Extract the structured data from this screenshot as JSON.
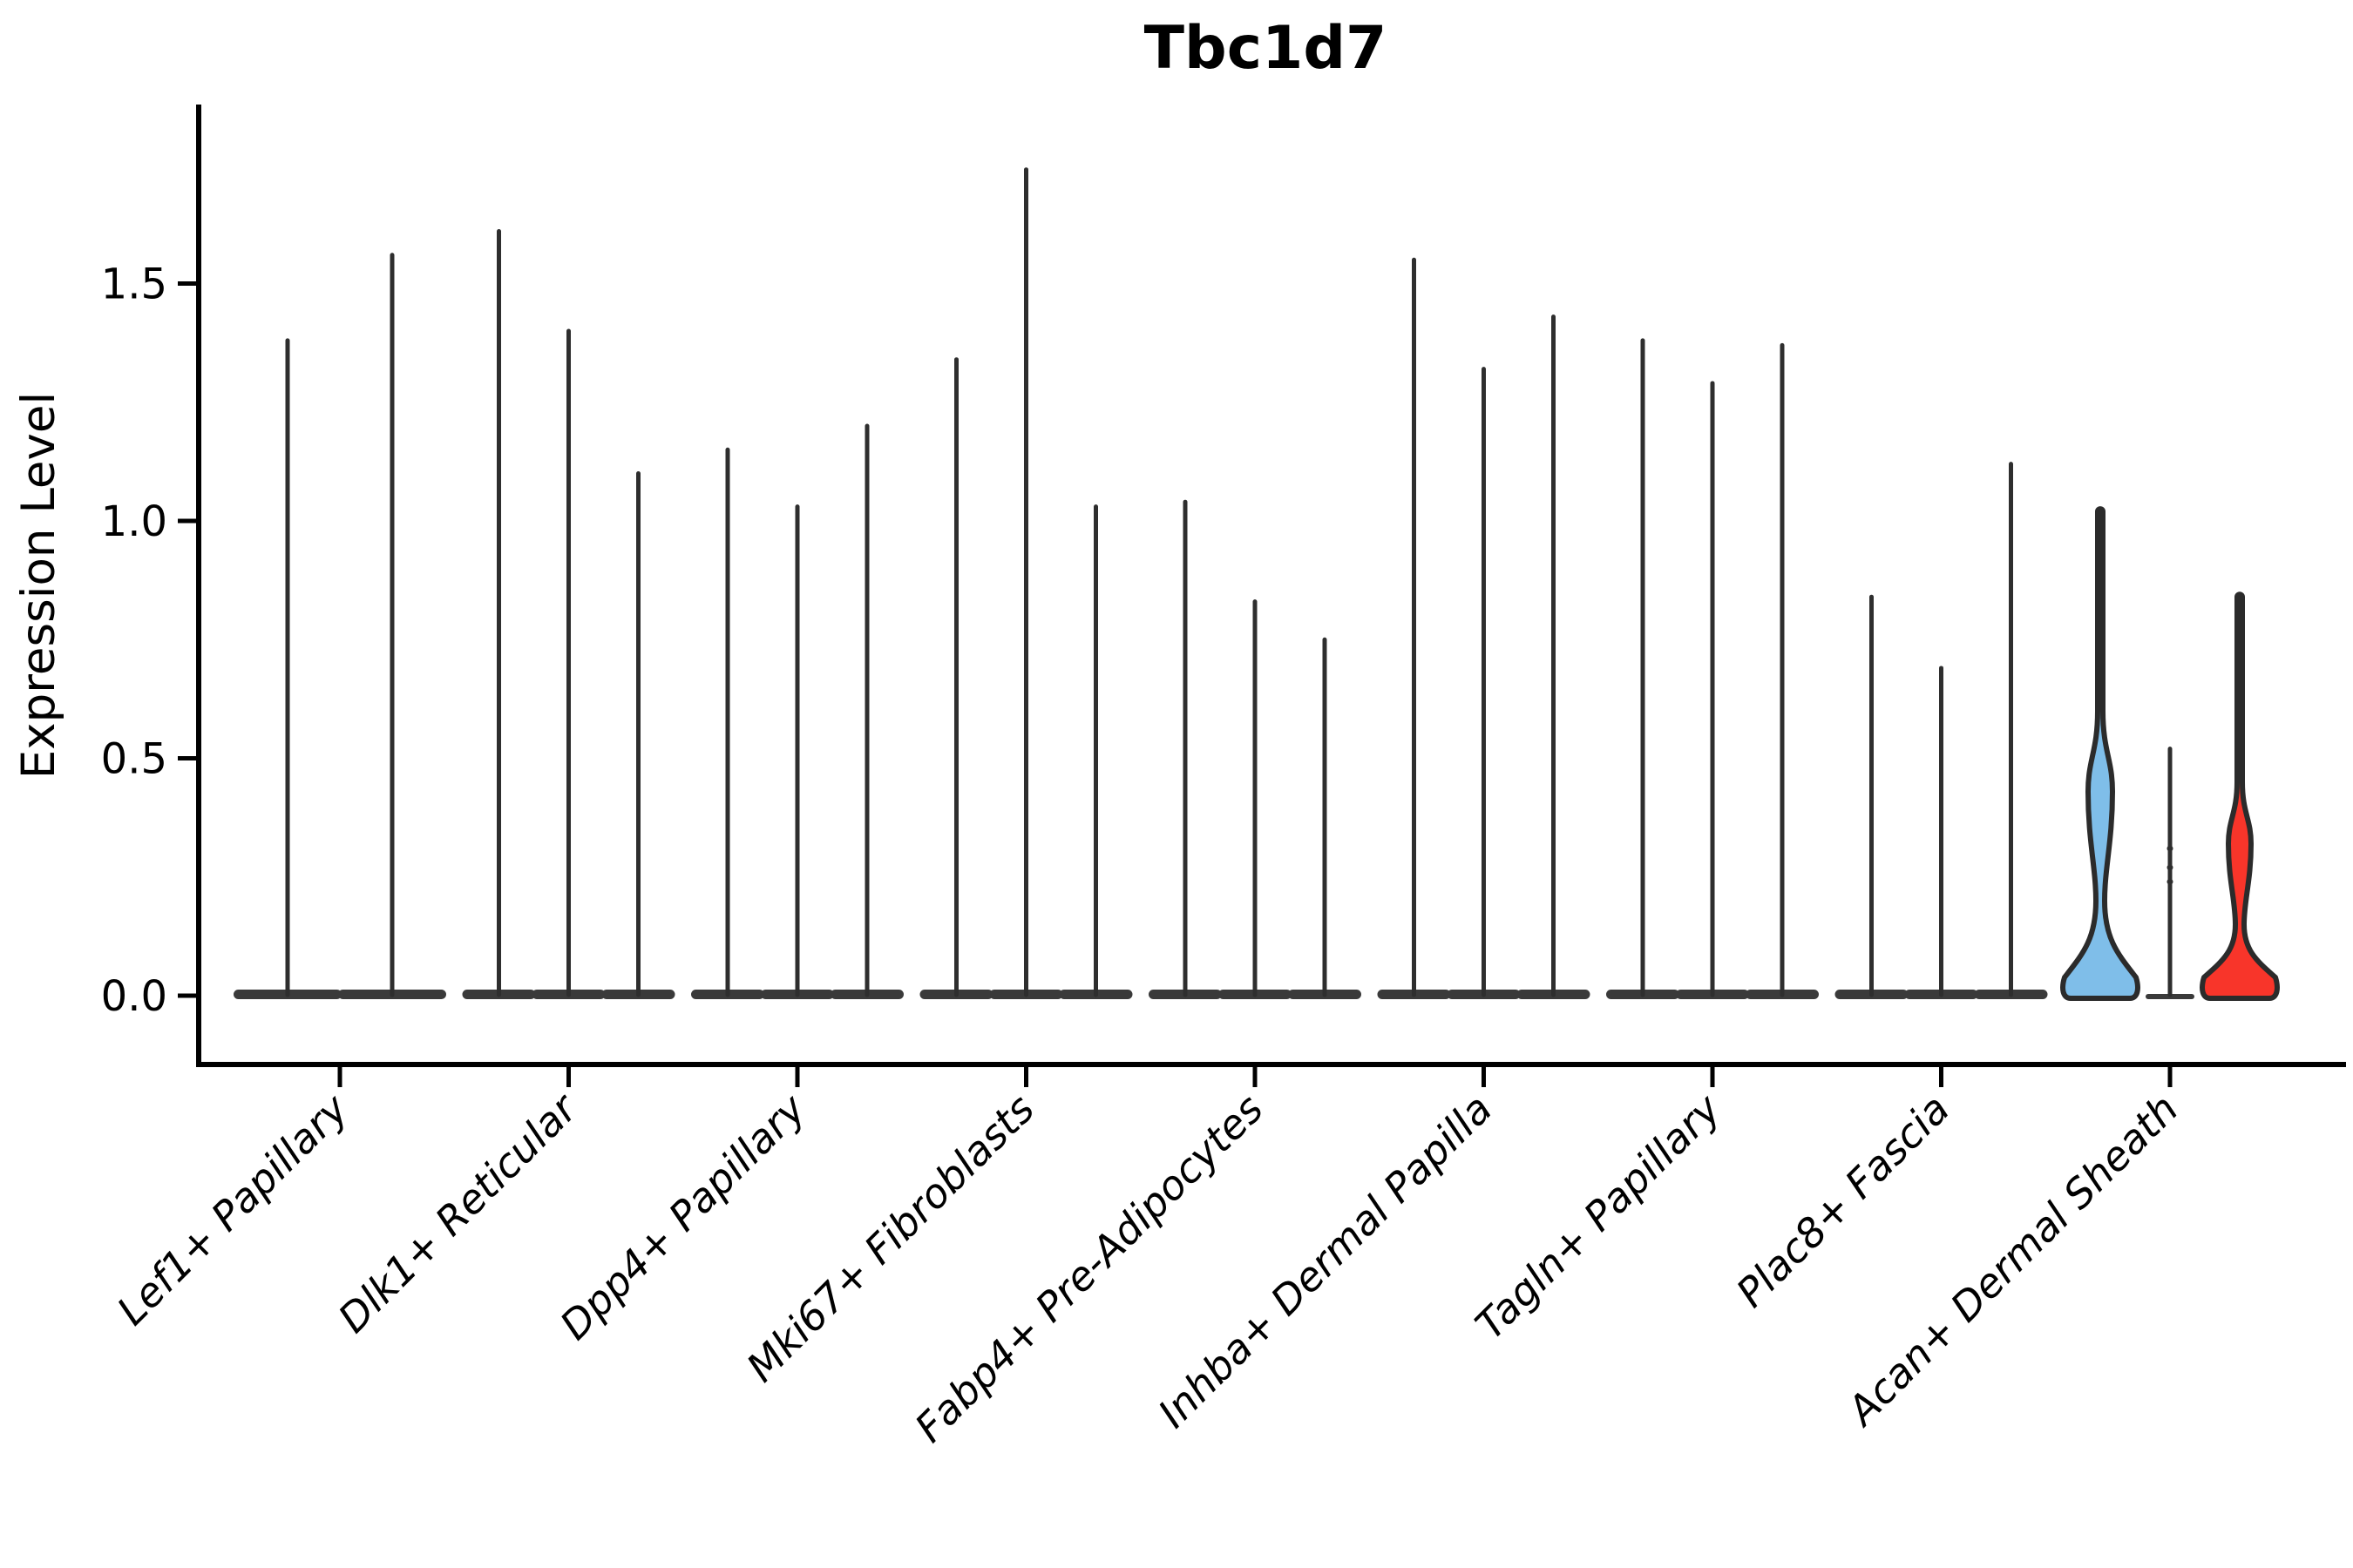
{
  "title": "Tbc1d7",
  "axes": {
    "y_label": "Expression Level",
    "y_tick_labels": [
      "0.0",
      "0.5",
      "1.0",
      "1.5"
    ]
  },
  "colors": {
    "background": "#ffffff",
    "axis": "#000000",
    "spike": "#2e2e2e",
    "violin_edge": "#2b2b2b",
    "base_bar": "#3a3a3a",
    "highlight_blue": "#7FBEE9",
    "highlight_red": "#F8352A"
  },
  "chart_data": {
    "type": "violin",
    "title": "Tbc1d7",
    "xlabel": "",
    "ylabel": "Expression Level",
    "ylim": [
      -0.15,
      1.95
    ],
    "yticks": [
      0.0,
      0.5,
      1.0,
      1.5
    ],
    "legend": "none",
    "grid": false,
    "categories": [
      "Lef1+ Papillary",
      "Dlk1+ Reticular",
      "Dpp4+ Papillary",
      "Mki67+ Fibroblasts",
      "Fabp4+ Pre-Adipocytes",
      "Inhba+ Dermal Papilla",
      "Tagln+ Papillary",
      "Plac8+ Fascia",
      "Acan+ Dermal Sheath"
    ],
    "description": "Nearly all violins collapse to a flat base at 0 with a thin spike up to the max expression value; only the first and third violins of the last group have visible density bulges and are color-filled.",
    "groups": [
      {
        "category": "Lef1+ Papillary",
        "violins": [
          {
            "max": 1.38,
            "fill": "none"
          },
          {
            "max": 1.56,
            "fill": "none"
          }
        ]
      },
      {
        "category": "Dlk1+ Reticular",
        "violins": [
          {
            "max": 1.61,
            "fill": "none"
          },
          {
            "max": 1.4,
            "fill": "none"
          },
          {
            "max": 1.1,
            "fill": "none"
          }
        ]
      },
      {
        "category": "Dpp4+ Papillary",
        "violins": [
          {
            "max": 1.15,
            "fill": "none"
          },
          {
            "max": 1.03,
            "fill": "none"
          },
          {
            "max": 1.2,
            "fill": "none"
          }
        ]
      },
      {
        "category": "Mki67+ Fibroblasts",
        "violins": [
          {
            "max": 1.34,
            "fill": "none"
          },
          {
            "max": 1.74,
            "fill": "none"
          },
          {
            "max": 1.03,
            "fill": "none"
          }
        ]
      },
      {
        "category": "Fabp4+ Pre-Adipocytes",
        "violins": [
          {
            "max": 1.04,
            "fill": "none"
          },
          {
            "max": 0.83,
            "fill": "none"
          },
          {
            "max": 0.75,
            "fill": "none"
          }
        ]
      },
      {
        "category": "Inhba+ Dermal Papilla",
        "violins": [
          {
            "max": 1.55,
            "fill": "none"
          },
          {
            "max": 1.32,
            "fill": "none"
          },
          {
            "max": 1.43,
            "fill": "none"
          }
        ]
      },
      {
        "category": "Tagln+ Papillary",
        "violins": [
          {
            "max": 1.38,
            "fill": "none"
          },
          {
            "max": 1.29,
            "fill": "none"
          },
          {
            "max": 1.37,
            "fill": "none"
          }
        ]
      },
      {
        "category": "Plac8+ Fascia",
        "violins": [
          {
            "max": 0.84,
            "fill": "none"
          },
          {
            "max": 0.69,
            "fill": "none"
          },
          {
            "max": 1.12,
            "fill": "none"
          }
        ]
      },
      {
        "category": "Acan+ Dermal Sheath",
        "violins": [
          {
            "max": 1.02,
            "fill": "#7FBEE9",
            "neck_end": 0.6,
            "peak": 0.43,
            "waist": 0.2,
            "bulge_hw": 14,
            "base_hw": 41
          },
          {
            "max": 0.52,
            "fill": "none",
            "base_hw": 28,
            "dots": [
              0.31,
              0.27,
              0.24
            ]
          },
          {
            "max": 0.84,
            "fill": "#F8352A",
            "neck_end": 0.45,
            "peak": 0.32,
            "waist": 0.15,
            "bulge_hw": 13,
            "base_hw": 41
          }
        ]
      }
    ]
  }
}
